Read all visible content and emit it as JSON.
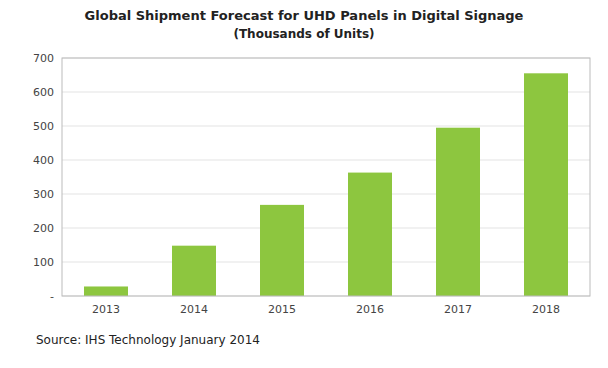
{
  "chart_data": {
    "type": "bar",
    "title": "Global Shipment Forecast for UHD Panels in Digital Signage",
    "subtitle": "(Thousands of Units)",
    "categories": [
      "2013",
      "2014",
      "2015",
      "2016",
      "2017",
      "2018"
    ],
    "values": [
      28,
      148,
      268,
      363,
      495,
      655
    ],
    "color": "#8DC63F",
    "ylim": [
      0,
      700
    ],
    "yticks": [
      {
        "value": 0,
        "label": "-"
      },
      100,
      200,
      300,
      400,
      500,
      600,
      700
    ],
    "grid": true,
    "annotations": [
      "Source: IHS Technology January 2014"
    ]
  }
}
